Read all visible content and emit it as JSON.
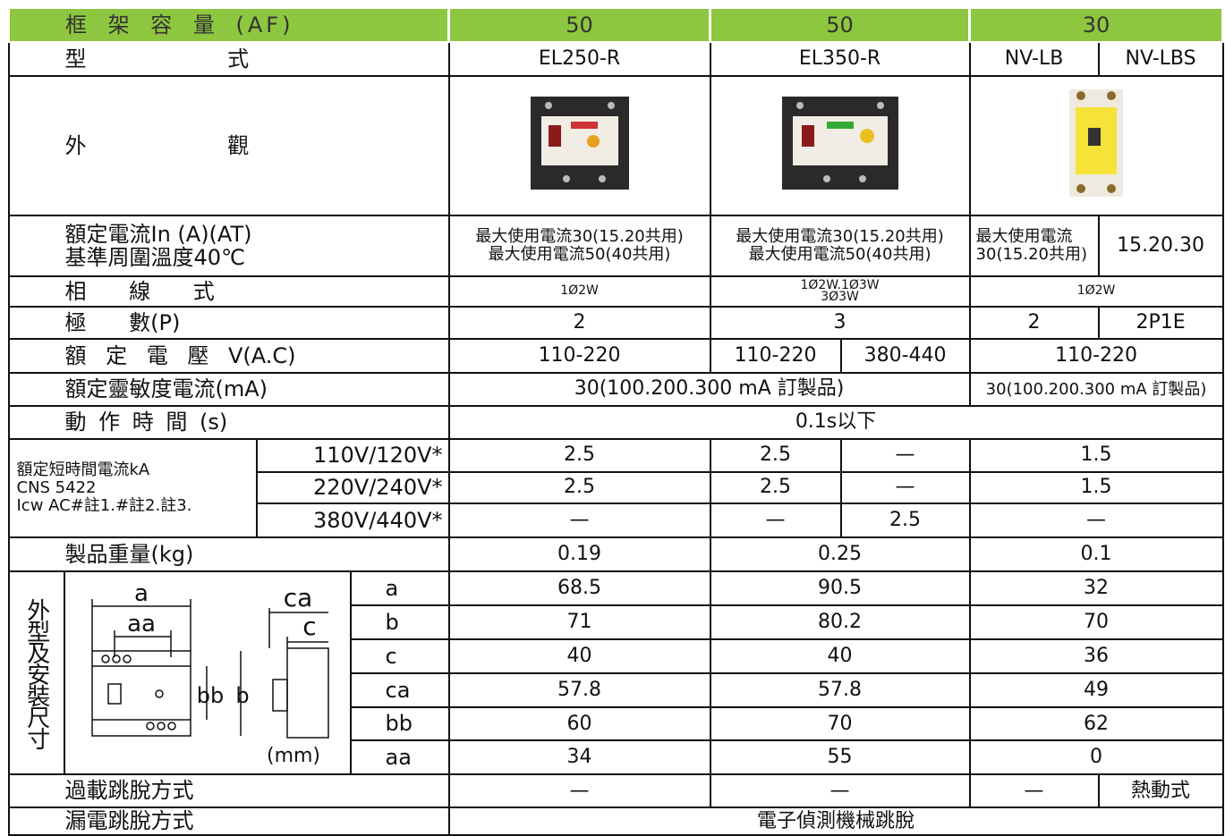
{
  "header": {
    "label": "框 架 容 量 (AF)",
    "frames": [
      50,
      50,
      30
    ]
  },
  "model": {
    "label": "型 式",
    "values": [
      "EL250-R",
      "EL350-R",
      "NV-LB",
      "NV-LBS"
    ]
  },
  "appearance": {
    "label": "外 觀"
  },
  "rated_current": {
    "label": [
      "額定電流In (A)(AT)",
      "基準周圍溫度40℃"
    ],
    "values": [
      [
        "最大使用電流30(15.20共用)",
        "最大使用電流50(40共用)"
      ],
      [
        "最大使用電流30(15.20共用)",
        "最大使用電流50(40共用)"
      ],
      "最大使用電流30(15.20共用)",
      "15.20.30"
    ]
  },
  "phase": {
    "label": "相 線 式",
    "values": [
      "1Ø2W",
      [
        "1Ø2W.1Ø3W",
        "3Ø3W"
      ],
      "1Ø2W"
    ]
  },
  "poles": {
    "label": "極 數(P)",
    "values": [
      2,
      3,
      2,
      "2P1E"
    ]
  },
  "voltage": {
    "label": "額 定 電 壓 V(A.C)",
    "values": [
      "110-220",
      "110-220",
      "380-440",
      "110-220"
    ]
  },
  "sensitivity": {
    "label": "額定靈敏度電流(mA)",
    "values": [
      "30(100.200.300 mA 訂製品)",
      "30(100.200.300 mA 訂製品)"
    ]
  },
  "trip_time": {
    "label": "動 作 時 間 (s)",
    "value": "0.1s以下"
  },
  "short_circuit": {
    "label": [
      "額定短時間電流kA",
      "CNS 5422",
      "Icw AC#註1.#註2.註3."
    ],
    "rows": [
      {
        "voltage": "110V/120V*",
        "values": [
          2.5,
          2.5,
          "—",
          1.5
        ]
      },
      {
        "voltage": "220V/240V*",
        "values": [
          2.5,
          2.5,
          "—",
          1.5
        ]
      },
      {
        "voltage": "380V/440V*",
        "values": [
          "—",
          "—",
          2.5,
          "—"
        ]
      }
    ]
  },
  "weight": {
    "label": "製品重量(kg)",
    "values": [
      0.19,
      0.25,
      0.1
    ]
  },
  "dimensions": {
    "label": "外型及安裝尺寸",
    "unit": "(mm)",
    "drawing_labels": [
      "a",
      "aa",
      "ca",
      "c",
      "bb",
      "b"
    ],
    "rows": [
      {
        "name": "a",
        "values": [
          68.5,
          90.5,
          32
        ]
      },
      {
        "name": "b",
        "values": [
          71,
          80.2,
          70
        ]
      },
      {
        "name": "c",
        "values": [
          40,
          40,
          36
        ]
      },
      {
        "name": "ca",
        "values": [
          57.8,
          57.8,
          49
        ]
      },
      {
        "name": "bb",
        "values": [
          60,
          70,
          62
        ]
      },
      {
        "name": "aa",
        "values": [
          34,
          55,
          0
        ]
      }
    ]
  },
  "overload_trip": {
    "label": "過載跳脫方式",
    "values": [
      "—",
      "—",
      "—",
      "熱動式"
    ]
  },
  "leakage_trip": {
    "label": "漏電跳脫方式",
    "value": "電子偵測機械跳脫"
  }
}
